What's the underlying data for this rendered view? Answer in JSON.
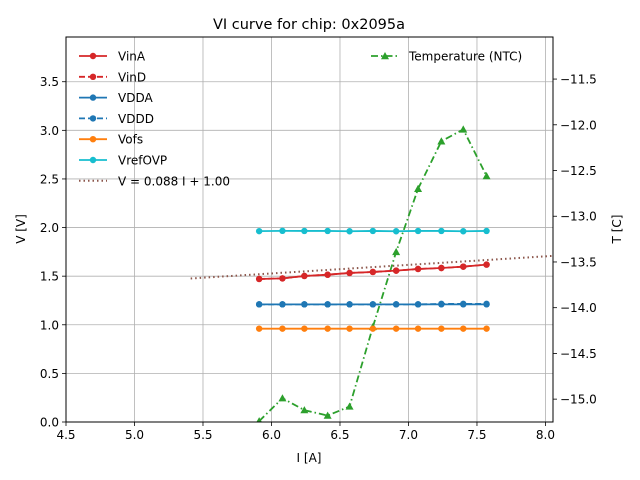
{
  "chart_data": {
    "type": "line",
    "title": "VI curve for chip: 0x2095a",
    "xlabel": "I [A]",
    "ylabel": "V [V]",
    "y2label": "T [C]",
    "xlim": [
      4.5,
      8.055
    ],
    "ylim": [
      0.0,
      3.96
    ],
    "y2lim": [
      -15.25,
      -11.04
    ],
    "xticks": [
      4.5,
      5.0,
      5.5,
      6.0,
      6.5,
      7.0,
      7.5,
      8.0
    ],
    "xtick_labels": [
      "4.5",
      "5.0",
      "5.5",
      "6.0",
      "6.5",
      "7.0",
      "7.5",
      "8.0"
    ],
    "yticks": [
      0.0,
      0.5,
      1.0,
      1.5,
      2.0,
      2.5,
      3.0,
      3.5
    ],
    "ytick_labels": [
      "0.0",
      "0.5",
      "1.0",
      "1.5",
      "2.0",
      "2.5",
      "3.0",
      "3.5"
    ],
    "y2ticks": [
      -15.0,
      -14.5,
      -14.0,
      -13.5,
      -13.0,
      -12.5,
      -12.0,
      -11.5
    ],
    "y2tick_labels": [
      "−15.0",
      "−14.5",
      "−14.0",
      "−13.5",
      "−13.0",
      "−12.5",
      "−12.0",
      "−11.5"
    ],
    "grid": true,
    "x": [
      5.91,
      6.08,
      6.24,
      6.41,
      6.57,
      6.74,
      6.91,
      7.07,
      7.24,
      7.4,
      7.57
    ],
    "series": [
      {
        "name": "VinA",
        "axis": "left",
        "color": "#d62728",
        "dash": "solid",
        "marker": "circle",
        "values": [
          1.471,
          1.477,
          1.502,
          1.515,
          1.533,
          1.543,
          1.557,
          1.574,
          1.584,
          1.598,
          1.619
        ]
      },
      {
        "name": "VinD",
        "axis": "left",
        "color": "#d62728",
        "dash": "dashed",
        "marker": "circle",
        "values": [
          1.471,
          1.477,
          1.502,
          1.515,
          1.533,
          1.543,
          1.557,
          1.574,
          1.584,
          1.598,
          1.619
        ]
      },
      {
        "name": "VDDA",
        "axis": "left",
        "color": "#1f77b4",
        "dash": "solid",
        "marker": "circle",
        "values": [
          1.21,
          1.21,
          1.21,
          1.21,
          1.21,
          1.21,
          1.21,
          1.21,
          1.21,
          1.21,
          1.21
        ]
      },
      {
        "name": "VDDD",
        "axis": "left",
        "color": "#1f77b4",
        "dash": "dashed",
        "marker": "circle",
        "values": [
          1.21,
          1.21,
          1.21,
          1.21,
          1.21,
          1.21,
          1.21,
          1.21,
          1.215,
          1.215,
          1.215
        ]
      },
      {
        "name": "Vofs",
        "axis": "left",
        "color": "#ff7f0e",
        "dash": "solid",
        "marker": "circle",
        "values": [
          0.96,
          0.96,
          0.96,
          0.96,
          0.96,
          0.96,
          0.96,
          0.96,
          0.96,
          0.96,
          0.96
        ]
      },
      {
        "name": "VrefOVP",
        "axis": "left",
        "color": "#17becf",
        "dash": "solid",
        "marker": "circle",
        "values": [
          1.963,
          1.966,
          1.965,
          1.965,
          1.962,
          1.965,
          1.962,
          1.965,
          1.965,
          1.962,
          1.965
        ]
      },
      {
        "name": "Temperature (NTC)",
        "axis": "right",
        "color": "#2ca02c",
        "dash": "dashdot",
        "marker": "triangle",
        "values": [
          -15.24,
          -14.99,
          -15.12,
          -15.18,
          -15.08,
          -14.21,
          -13.39,
          -12.7,
          -12.18,
          -12.05,
          -12.56
        ]
      }
    ],
    "fit_line": {
      "name": "V = 0.088 I + 1.00",
      "slope": 0.088,
      "intercept": 1.0,
      "x_range": [
        5.41,
        8.055
      ],
      "color": "#8c564b",
      "dash": "dotted"
    },
    "legend_left": {
      "placement": "top-left",
      "entries": [
        "VinA",
        "VinD",
        "VDDA",
        "VDDD",
        "Vofs",
        "VrefOVP",
        "V = 0.088 I + 1.00"
      ]
    },
    "legend_right": {
      "placement": "top-right",
      "entries": [
        "Temperature (NTC)"
      ]
    }
  }
}
